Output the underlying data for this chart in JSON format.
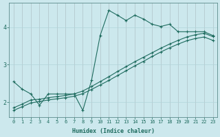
{
  "xlabel": "Humidex (Indice chaleur)",
  "bg_color": "#cce8ed",
  "line_color": "#1e6b5e",
  "grid_color": "#b0d4da",
  "xlim": [
    -0.5,
    23.5
  ],
  "ylim": [
    1.6,
    4.65
  ],
  "xticks": [
    0,
    1,
    2,
    3,
    4,
    5,
    6,
    7,
    8,
    9,
    10,
    11,
    12,
    13,
    14,
    15,
    16,
    17,
    18,
    19,
    20,
    21,
    22,
    23
  ],
  "yticks": [
    2,
    3,
    4
  ],
  "line1_x": [
    0,
    1,
    2,
    3,
    4,
    5,
    6,
    7,
    8,
    9,
    10,
    11,
    12,
    13,
    14,
    15,
    16,
    17,
    18,
    19,
    20,
    21,
    22,
    23
  ],
  "line1_y": [
    2.55,
    2.35,
    2.22,
    1.92,
    2.22,
    2.22,
    2.22,
    2.22,
    1.78,
    2.58,
    3.78,
    4.45,
    4.32,
    4.18,
    4.32,
    4.22,
    4.08,
    4.02,
    4.08,
    3.88,
    3.88,
    3.88,
    3.88,
    3.78
  ],
  "line2_x": [
    0,
    1,
    2,
    3,
    4,
    5,
    6,
    7,
    8,
    9,
    10,
    11,
    12,
    13,
    14,
    15,
    16,
    17,
    18,
    19,
    20,
    21,
    22,
    23
  ],
  "line2_y": [
    1.85,
    1.95,
    2.06,
    2.08,
    2.12,
    2.15,
    2.18,
    2.22,
    2.3,
    2.42,
    2.55,
    2.68,
    2.82,
    2.95,
    3.08,
    3.2,
    3.32,
    3.44,
    3.55,
    3.65,
    3.74,
    3.8,
    3.84,
    3.75
  ],
  "line3_x": [
    0,
    1,
    2,
    3,
    4,
    5,
    6,
    7,
    8,
    9,
    10,
    11,
    12,
    13,
    14,
    15,
    16,
    17,
    18,
    19,
    20,
    21,
    22,
    23
  ],
  "line3_y": [
    1.78,
    1.88,
    1.98,
    2.02,
    2.06,
    2.09,
    2.12,
    2.16,
    2.23,
    2.34,
    2.46,
    2.58,
    2.71,
    2.84,
    2.97,
    3.09,
    3.22,
    3.34,
    3.45,
    3.55,
    3.64,
    3.7,
    3.74,
    3.65
  ],
  "xlabel_fontsize": 6,
  "tick_fontsize": 5
}
